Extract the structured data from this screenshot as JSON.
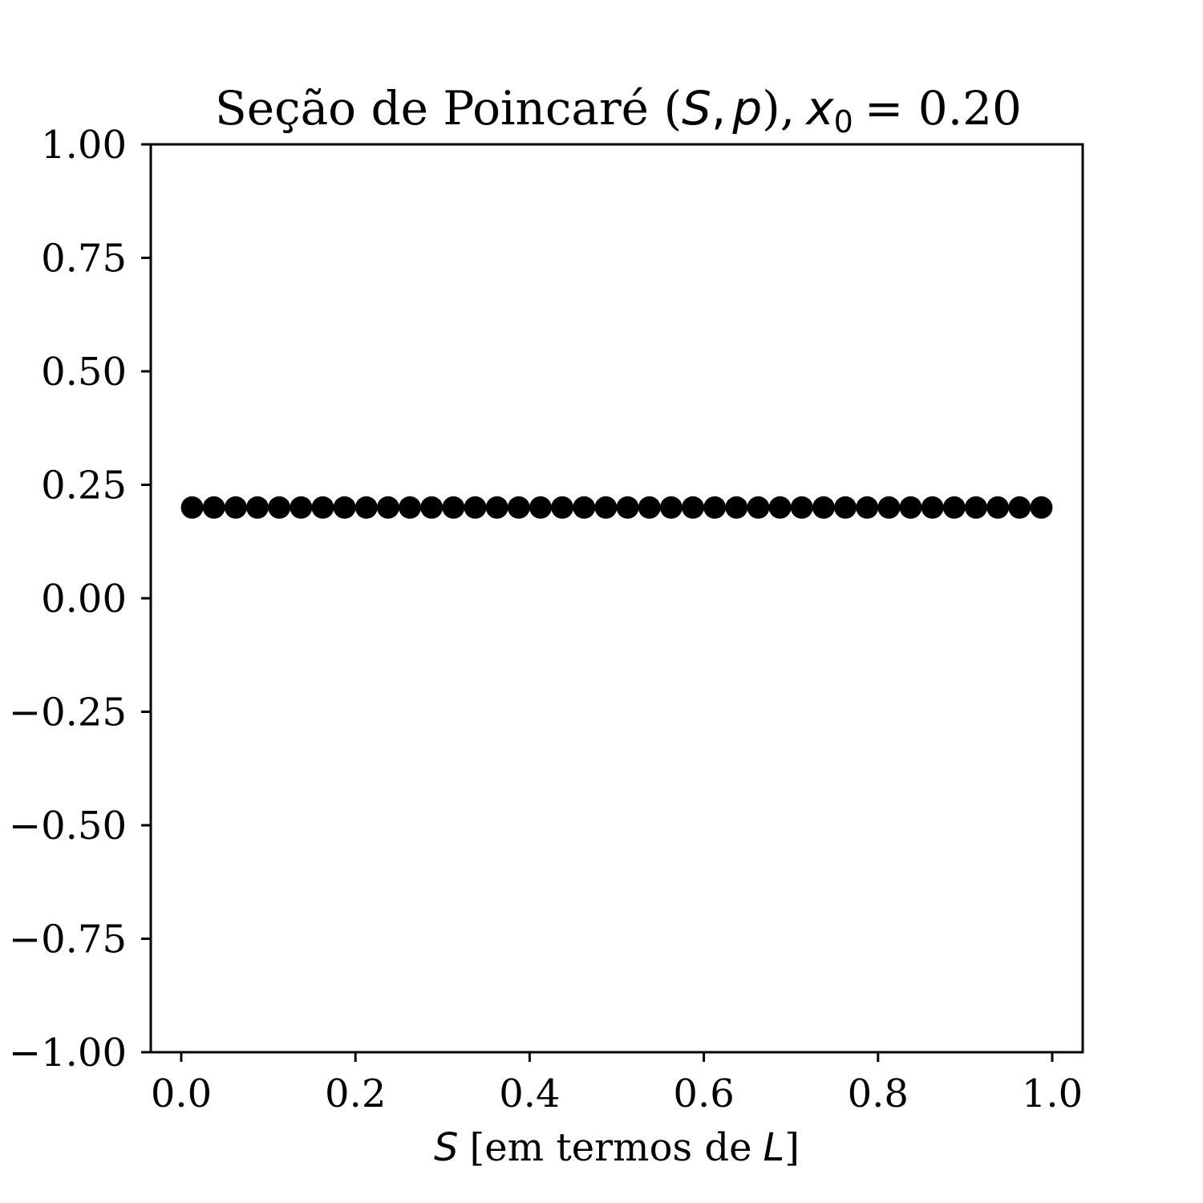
{
  "chart_data": {
    "type": "scatter",
    "title": {
      "prefix": "Seção de Poincaré (",
      "S": "S",
      "comma": ",",
      "p": "p",
      "close": "),",
      "x": "x",
      "sub": "0",
      "suffix": "= 0.20"
    },
    "xlabel": {
      "S": "S",
      "middle": "[em termos de",
      "L": "L",
      "end": "]"
    },
    "xlim": [
      -0.035,
      1.035
    ],
    "ylim": [
      -1.0,
      1.0
    ],
    "xticks": [
      0.0,
      0.2,
      0.4,
      0.6,
      0.8,
      1.0
    ],
    "xtick_labels": [
      "0.0",
      "0.2",
      "0.4",
      "0.6",
      "0.8",
      "1.0"
    ],
    "yticks": [
      1.0,
      0.75,
      0.5,
      0.25,
      0.0,
      -0.25,
      -0.5,
      -0.75,
      -1.0
    ],
    "ytick_labels": [
      "1.00",
      "0.75",
      "0.50",
      "0.25",
      "0.00",
      "−0.25",
      "−0.50",
      "−0.75",
      "−1.00"
    ],
    "grid": false,
    "marker_color": "#000000",
    "series": [
      {
        "x": [
          0.0125,
          0.0375,
          0.0625,
          0.0875,
          0.1125,
          0.1375,
          0.1625,
          0.1875,
          0.2125,
          0.2375,
          0.2625,
          0.2875,
          0.3125,
          0.3375,
          0.3625,
          0.3875,
          0.4125,
          0.4375,
          0.4625,
          0.4875,
          0.5125,
          0.5375,
          0.5625,
          0.5875,
          0.6125,
          0.6375,
          0.6625,
          0.6875,
          0.7125,
          0.7375,
          0.7625,
          0.7875,
          0.8125,
          0.8375,
          0.8625,
          0.8875,
          0.9125,
          0.9375,
          0.9625,
          0.9875
        ],
        "y": [
          0.2,
          0.2,
          0.2,
          0.2,
          0.2,
          0.2,
          0.2,
          0.2,
          0.2,
          0.2,
          0.2,
          0.2,
          0.2,
          0.2,
          0.2,
          0.2,
          0.2,
          0.2,
          0.2,
          0.2,
          0.2,
          0.2,
          0.2,
          0.2,
          0.2,
          0.2,
          0.2,
          0.2,
          0.2,
          0.2,
          0.2,
          0.2,
          0.2,
          0.2,
          0.2,
          0.2,
          0.2,
          0.2,
          0.2,
          0.2
        ]
      }
    ]
  }
}
